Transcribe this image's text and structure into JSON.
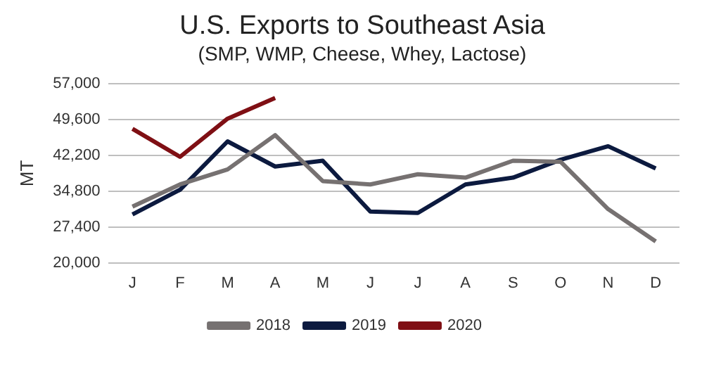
{
  "chart_data": {
    "type": "line",
    "title": "U.S. Exports to Southeast Asia",
    "subtitle": "(SMP, WMP, Cheese, Whey, Lactose)",
    "ylabel": "MT",
    "categories": [
      "J",
      "F",
      "M",
      "A",
      "M",
      "J",
      "J",
      "A",
      "S",
      "O",
      "N",
      "D"
    ],
    "series": [
      {
        "name": "2018",
        "color": "#767171",
        "values": [
          31600,
          36200,
          39300,
          46400,
          36900,
          36200,
          38300,
          37600,
          41100,
          40900,
          31100,
          24400
        ]
      },
      {
        "name": "2019",
        "color": "#0c1a3f",
        "values": [
          30000,
          35100,
          45100,
          39900,
          41100,
          30600,
          30300,
          36200,
          37600,
          41300,
          44100,
          39500
        ]
      },
      {
        "name": "2020",
        "color": "#7f0f14",
        "values": [
          47700,
          41900,
          49800,
          54100,
          null,
          null,
          null,
          null,
          null,
          null,
          null,
          null
        ]
      }
    ],
    "ylim": [
      20000,
      57000
    ],
    "yticks": [
      {
        "value": 20000,
        "label": "20,000"
      },
      {
        "value": 27400,
        "label": "27,400"
      },
      {
        "value": 34800,
        "label": "34,800"
      },
      {
        "value": 42200,
        "label": "42,200"
      },
      {
        "value": 49600,
        "label": "49,600"
      },
      {
        "value": 57000,
        "label": "57,000"
      }
    ],
    "grid": "y",
    "legend": "bottom",
    "marker": "none",
    "line_style": "solid"
  }
}
